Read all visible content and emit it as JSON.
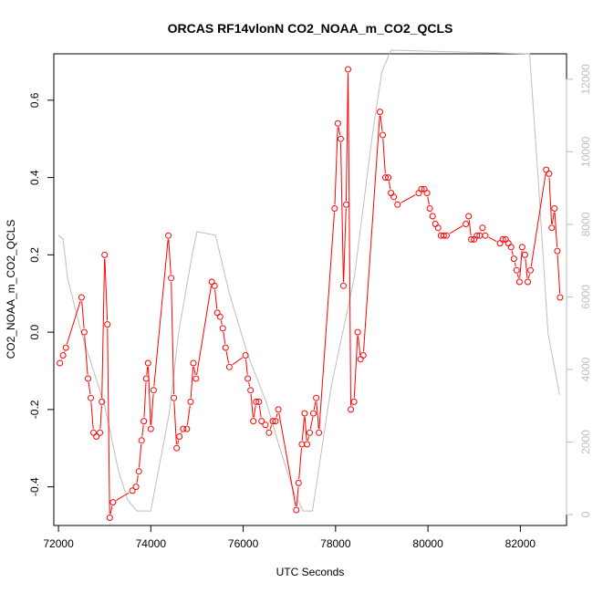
{
  "chart_data": {
    "type": "line",
    "title": "ORCAS RF14vlonN CO2_NOAA_m_CO2_QCLS",
    "xlabel": "UTC Seconds",
    "ylabel": "CO2_NOAA_m_CO2_QCLS",
    "xlim": [
      71900,
      83000
    ],
    "ylim": [
      -0.5,
      0.72
    ],
    "y2lim": [
      -300,
      12700
    ],
    "grid": false,
    "x_ticks": [
      72000,
      74000,
      76000,
      78000,
      80000,
      82000
    ],
    "y_ticks": [
      -0.4,
      -0.2,
      0.0,
      0.2,
      0.4,
      0.6
    ],
    "y_tick_labels": [
      "-0.4",
      "-0.2",
      "0.0",
      "0.2",
      "0.4",
      "0.6"
    ],
    "y2_ticks": [
      0,
      2000,
      4000,
      6000,
      8000,
      10000,
      12000
    ],
    "colors": {
      "primary": "#ff0000",
      "secondary": "#bebebe",
      "axis": "#000000",
      "axis2": "#bebebe"
    },
    "series": [
      {
        "axis": "left",
        "style": "line-with-circle-markers",
        "x": [
          72030,
          72100,
          72160,
          72500,
          72560,
          72640,
          72700,
          72760,
          72820,
          72900,
          72940,
          73000,
          73060,
          73110,
          73180,
          73600,
          73680,
          73740,
          73800,
          73850,
          73900,
          73940,
          74000,
          74060,
          74380,
          74440,
          74500,
          74560,
          74620,
          74700,
          74780,
          74860,
          74920,
          74980,
          75320,
          75380,
          75440,
          75500,
          75560,
          75620,
          75700,
          76050,
          76100,
          76160,
          76220,
          76280,
          76340,
          76400,
          76480,
          76560,
          76640,
          76700,
          76760,
          77150,
          77200,
          77270,
          77330,
          77380,
          77440,
          77520,
          77580,
          77640,
          77980,
          78050,
          78110,
          78170,
          78230,
          78270,
          78330,
          78400,
          78480,
          78540,
          78600,
          78960,
          79020,
          79080,
          79140,
          79200,
          79260,
          79340,
          79800,
          79860,
          79920,
          79980,
          80040,
          80100,
          80160,
          80220,
          80280,
          80340,
          80400,
          80820,
          80880,
          80940,
          81000,
          81060,
          81120,
          81180,
          81240,
          81560,
          81620,
          81680,
          81740,
          81800,
          81860,
          81920,
          81980,
          82040,
          82100,
          82160,
          82220,
          82560,
          82620,
          82680,
          82740,
          82800,
          82860
        ],
        "y": [
          -0.08,
          -0.06,
          -0.04,
          0.09,
          0.0,
          -0.12,
          -0.17,
          -0.26,
          -0.27,
          -0.26,
          -0.18,
          0.2,
          0.02,
          -0.48,
          -0.44,
          -0.41,
          -0.4,
          -0.36,
          -0.28,
          -0.23,
          -0.12,
          -0.08,
          -0.25,
          -0.15,
          0.25,
          0.14,
          -0.17,
          -0.3,
          -0.27,
          -0.25,
          -0.25,
          -0.18,
          -0.08,
          -0.12,
          0.13,
          0.12,
          0.05,
          0.04,
          0.01,
          -0.04,
          -0.09,
          -0.06,
          -0.12,
          -0.15,
          -0.23,
          -0.18,
          -0.18,
          -0.23,
          -0.24,
          -0.26,
          -0.23,
          -0.23,
          -0.2,
          -0.46,
          -0.39,
          -0.29,
          -0.21,
          -0.29,
          -0.26,
          -0.21,
          -0.17,
          -0.26,
          0.32,
          0.54,
          0.5,
          0.12,
          0.33,
          0.68,
          -0.2,
          -0.18,
          0.0,
          -0.07,
          -0.06,
          0.57,
          0.51,
          0.4,
          0.4,
          0.36,
          0.35,
          0.33,
          0.36,
          0.37,
          0.37,
          0.36,
          0.32,
          0.3,
          0.28,
          0.27,
          0.25,
          0.25,
          0.25,
          0.28,
          0.3,
          0.24,
          0.24,
          0.25,
          0.25,
          0.27,
          0.25,
          0.23,
          0.24,
          0.24,
          0.23,
          0.22,
          0.19,
          0.16,
          0.13,
          0.22,
          0.2,
          0.13,
          0.16,
          0.42,
          0.41,
          0.27,
          0.32,
          0.21,
          0.09
        ]
      },
      {
        "axis": "right",
        "style": "line",
        "x": [
          72000,
          72100,
          72200,
          72500,
          73000,
          73300,
          73500,
          73700,
          74000,
          74400,
          74600,
          74900,
          75000,
          75400,
          75700,
          76100,
          76500,
          76800,
          77100,
          77300,
          77500,
          77900,
          78400,
          78800,
          79000,
          79200,
          82200,
          82400,
          82600,
          82850
        ],
        "y": [
          7700,
          7600,
          6500,
          5000,
          3000,
          1200,
          400,
          100,
          100,
          2800,
          5000,
          7200,
          7800,
          7700,
          6100,
          4400,
          3100,
          1800,
          600,
          100,
          100,
          3500,
          6500,
          10500,
          12200,
          12800,
          12700,
          9000,
          5000,
          3300
        ]
      }
    ]
  }
}
